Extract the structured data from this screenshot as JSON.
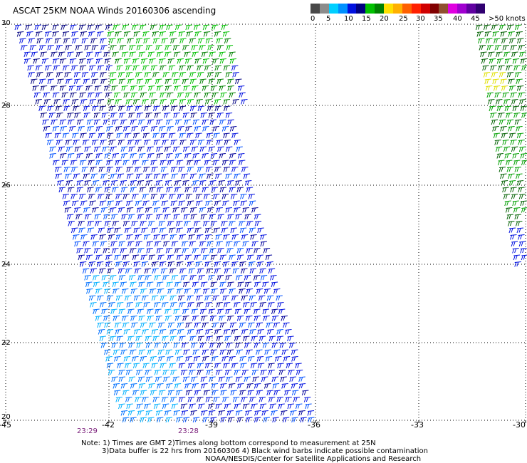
{
  "title": "ASCAT 25KM NOAA Winds 20160306 ascending",
  "legend": {
    "colors": [
      "#484848",
      "#8c8c8c",
      "#00cfff",
      "#0090ff",
      "#0010e0",
      "#000080",
      "#00c000",
      "#008000",
      "#ffe000",
      "#ffb000",
      "#ff6000",
      "#ff2000",
      "#d00000",
      "#800000",
      "#905030",
      "#e000e0",
      "#a000d0",
      "#6000a0",
      "#300070"
    ],
    "labels": [
      "0",
      "5",
      "10",
      "15",
      "20",
      "25",
      "30",
      "35",
      "40",
      "45",
      ">50 knots"
    ]
  },
  "axes": {
    "lon_labels": [
      "-45",
      "-42",
      "-39",
      "-36",
      "-33",
      "-30"
    ],
    "lat_labels": [
      "30",
      "28",
      "26",
      "24",
      "22",
      "20"
    ]
  },
  "times": [
    "23:29",
    "23:28"
  ],
  "notes": [
    "Note: 1) Times are GMT 2)Times along bottom correspond to measurement at 25N",
    "3)Data buffer is 22 hrs from 20160306 4) Black wind barbs indicate possible contamination",
    "NOAA/NESDIS/Center for Satellite Applications and Research"
  ]
}
